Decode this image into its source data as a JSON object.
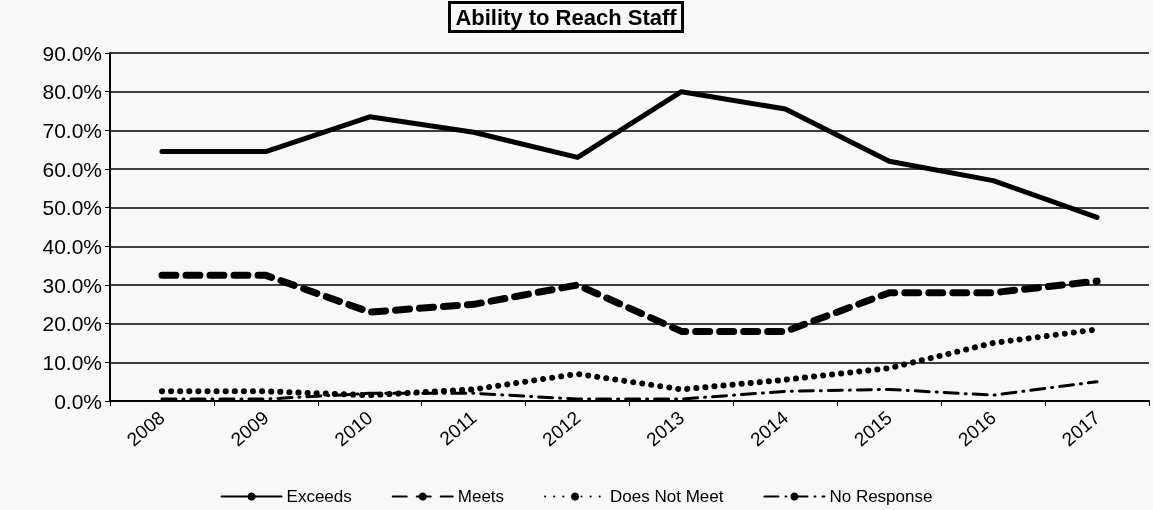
{
  "chart_data": {
    "type": "line",
    "title": "Ability to Reach Staff",
    "categories": [
      "2008",
      "2009",
      "2010",
      "2011",
      "2012",
      "2013",
      "2014",
      "2015",
      "2016",
      "2017"
    ],
    "series": [
      {
        "name": "Exceeds",
        "color": "#000000",
        "line_style": "solid",
        "values": [
          64.5,
          64.5,
          73.5,
          69.5,
          63,
          80,
          75.5,
          62,
          57,
          47.5
        ]
      },
      {
        "name": "Meets",
        "color": "#000000",
        "line_style": "dashed",
        "values": [
          32.5,
          32.5,
          23,
          25,
          30,
          18,
          18,
          28,
          28,
          31
        ]
      },
      {
        "name": "Does Not Meet",
        "color": "#000000",
        "line_style": "dotted",
        "values": [
          2.5,
          2.5,
          1.5,
          3,
          7,
          3,
          5.5,
          8.5,
          15,
          18.5
        ]
      },
      {
        "name": "No Response",
        "color": "#000000",
        "line_style": "dashdot",
        "values": [
          0.5,
          0.5,
          2,
          2,
          0.5,
          0.5,
          2.5,
          3,
          1.5,
          5
        ]
      }
    ],
    "ylim": [
      0,
      90
    ],
    "yticks": [
      {
        "value": 0,
        "label": "0.0%"
      },
      {
        "value": 10,
        "label": "10.0%"
      },
      {
        "value": 20,
        "label": "20.0%"
      },
      {
        "value": 30,
        "label": "30.0%"
      },
      {
        "value": 40,
        "label": "40.0%"
      },
      {
        "value": 50,
        "label": "50.0%"
      },
      {
        "value": 60,
        "label": "60.0%"
      },
      {
        "value": 70,
        "label": "70.0%"
      },
      {
        "value": 80,
        "label": "80.0%"
      },
      {
        "value": 90,
        "label": "90.0%"
      }
    ],
    "grid": "y",
    "legend": "bottom",
    "marker": "none"
  }
}
